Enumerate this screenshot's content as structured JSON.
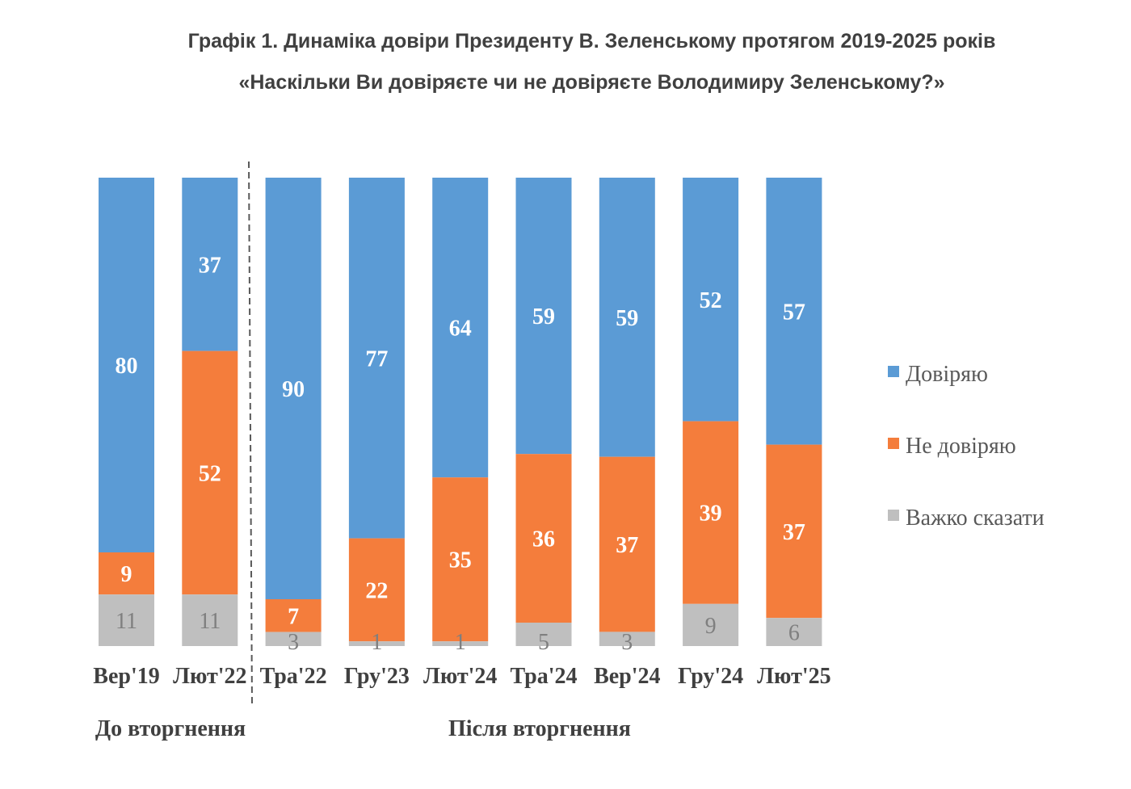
{
  "chart_data": {
    "type": "stacked-bar-100",
    "title": "Графік 1. Динаміка довіри Президенту В. Зеленському протягом 2019-2025 років",
    "subtitle": "«Наскільки Ви довіряєте чи не довіряєте Володимиру Зеленському?»",
    "categories": [
      "Вер'19",
      "Лют'22",
      "Тра'22",
      "Гру'23",
      "Лют'24",
      "Тра'24",
      "Вер'24",
      "Гру'24",
      "Лют'25"
    ],
    "series": [
      {
        "name": "Довіряю",
        "color": "#5b9bd5",
        "values": [
          80,
          37,
          90,
          77,
          64,
          59,
          59,
          52,
          57
        ]
      },
      {
        "name": "Не довіряю",
        "color": "#f47d3c",
        "values": [
          9,
          52,
          7,
          22,
          35,
          36,
          37,
          39,
          37
        ]
      },
      {
        "name": "Важко сказати",
        "color": "#bfbfbf",
        "values": [
          11,
          11,
          3,
          1,
          1,
          5,
          3,
          9,
          6
        ]
      }
    ],
    "groups": [
      {
        "label": "До вторгнення",
        "categories": [
          "Вер'19",
          "Лют'22"
        ]
      },
      {
        "label": "Після вторгнення",
        "categories": [
          "Тра'22",
          "Гру'23",
          "Лют'24",
          "Тра'24",
          "Вер'24",
          "Гру'24",
          "Лют'25"
        ]
      }
    ],
    "legend_position": "right",
    "grid": false,
    "data_labels": true
  }
}
